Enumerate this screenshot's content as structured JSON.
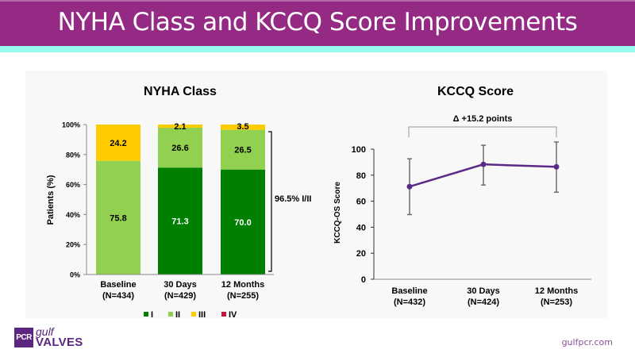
{
  "header": {
    "title": "NYHA Class and KCCQ Score Improvements"
  },
  "footer": {
    "logo_box": "PCR",
    "logo_gulf": "gulf",
    "logo_valves": "VALVES",
    "website": "gulfpcr.com"
  },
  "colors": {
    "banner": "#952a85",
    "accent": "#99fbee",
    "class_I": "#008000",
    "class_II": "#92d050",
    "class_III": "#ffcc00",
    "class_IV": "#c0143c",
    "kccq_line": "#5b2a86",
    "error_bar": "#6e6e6e"
  },
  "chart_data": [
    {
      "type": "bar",
      "stacked": true,
      "title": "NYHA Class",
      "xlabel": "",
      "ylabel": "Patients (%)",
      "ylim": [
        0,
        100
      ],
      "yticks": [
        "0%",
        "20%",
        "40%",
        "60%",
        "80%",
        "100%"
      ],
      "ytick_values": [
        0,
        20,
        40,
        60,
        80,
        100
      ],
      "categories": [
        "Baseline",
        "30 Days",
        "12 Months"
      ],
      "category_n": [
        "(N=434)",
        "(N=429)",
        "(N=255)"
      ],
      "series": [
        {
          "name": "I",
          "values": [
            0,
            71.3,
            70.0
          ],
          "labels": [
            "",
            "71.3",
            "70.0"
          ]
        },
        {
          "name": "II",
          "values": [
            75.8,
            26.6,
            26.5
          ],
          "labels": [
            "75.8",
            "26.6",
            "26.5"
          ]
        },
        {
          "name": "III",
          "values": [
            24.2,
            2.1,
            3.5
          ],
          "labels": [
            "24.2",
            "2.1",
            "3.5"
          ]
        },
        {
          "name": "IV",
          "values": [
            0,
            0,
            0
          ],
          "labels": [
            "",
            "",
            ""
          ]
        }
      ],
      "legend": [
        "I",
        "II",
        "III",
        "IV"
      ],
      "legend_position": "bottom",
      "annotation": "96.5% I/II",
      "grid": false
    },
    {
      "type": "line",
      "title": "KCCQ Score",
      "xlabel": "",
      "ylabel": "KCCQ-OS Score",
      "ylim": [
        0,
        100
      ],
      "yticks": [
        "0",
        "20",
        "40",
        "60",
        "80",
        "100"
      ],
      "ytick_values": [
        0,
        20,
        40,
        60,
        80,
        100
      ],
      "categories": [
        "Baseline",
        "30 Days",
        "12 Months"
      ],
      "category_n": [
        "(N=432)",
        "(N=424)",
        "(N=253)"
      ],
      "series": [
        {
          "name": "KCCQ-OS",
          "values": [
            71.2,
            88.3,
            86.4
          ],
          "error_low": [
            49.7,
            72.4,
            66.9
          ],
          "error_high": [
            92.6,
            103.0,
            105.5
          ]
        }
      ],
      "annotation": "Δ +15.2 points",
      "grid": false
    }
  ]
}
